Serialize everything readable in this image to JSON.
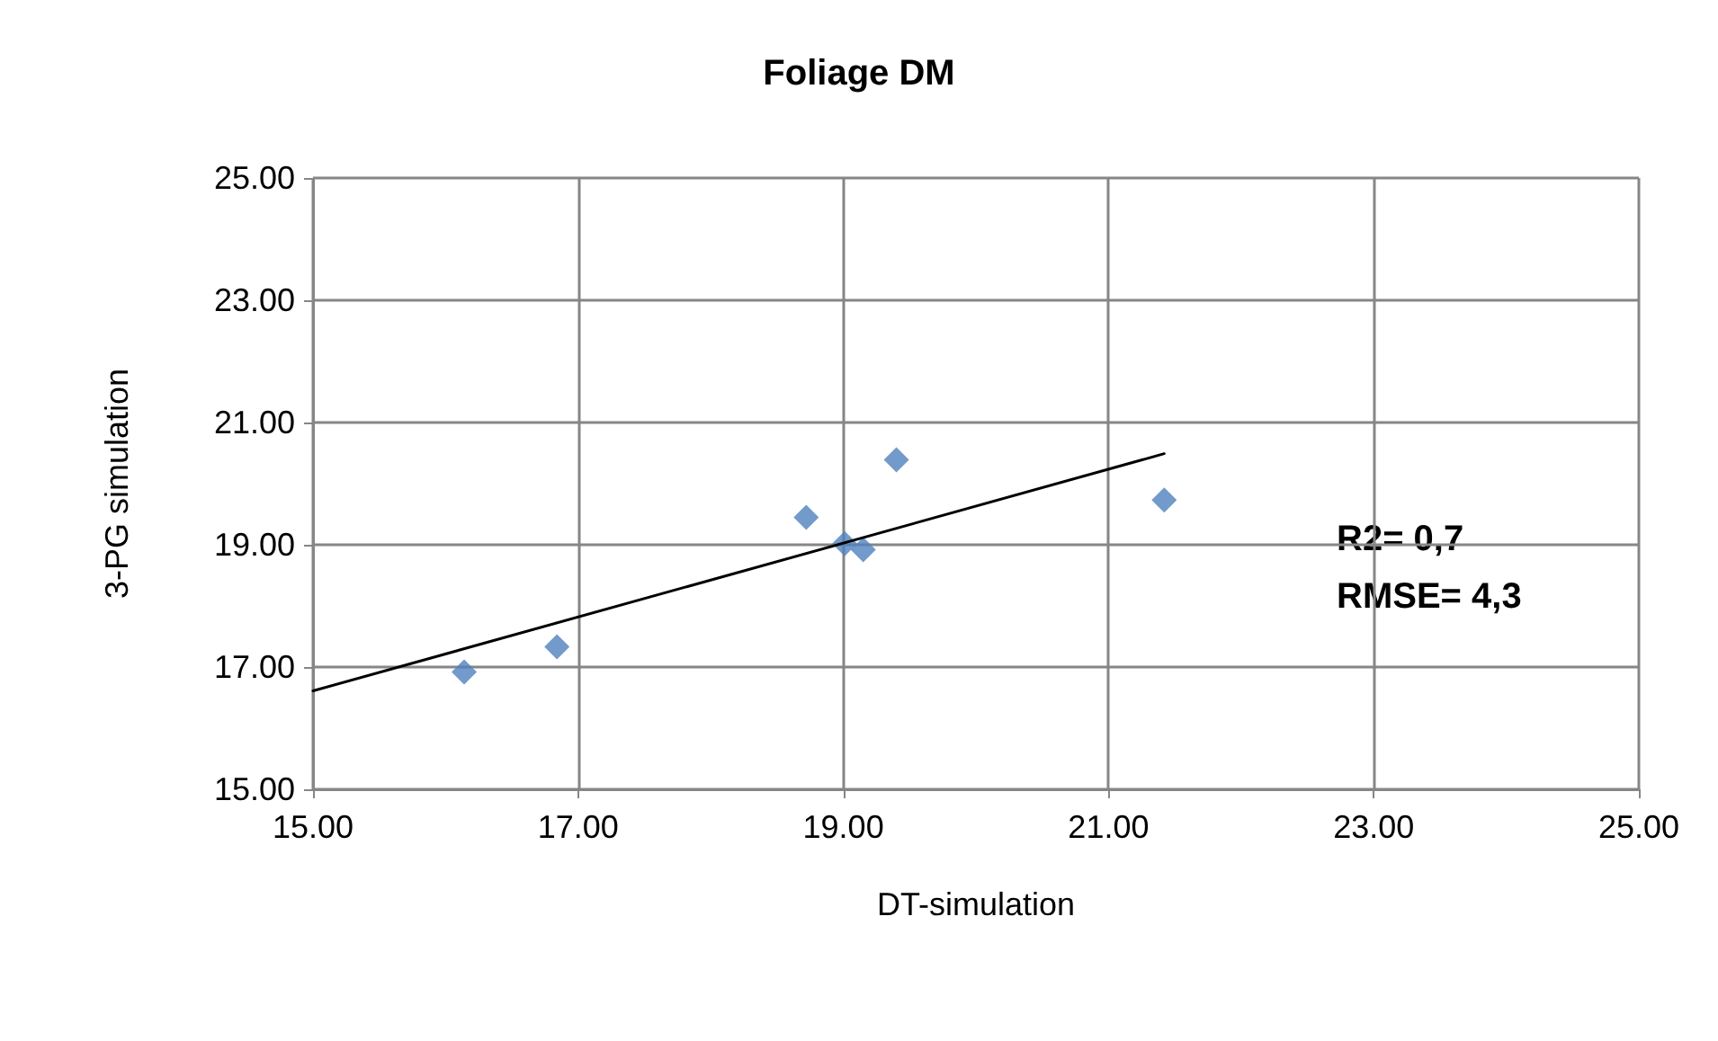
{
  "chart_data": {
    "type": "scatter",
    "title": "Foliage DM",
    "xlabel": "DT-simulation",
    "ylabel": "3-PG simulation",
    "series": [
      {
        "type": "scatter",
        "color": "#4f81bd",
        "marker": "diamond",
        "x": [
          16.14,
          16.84,
          18.72,
          19.01,
          19.15,
          19.4,
          21.42
        ],
        "values": [
          16.92,
          17.33,
          19.45,
          19.02,
          18.92,
          20.39,
          19.73
        ]
      },
      {
        "type": "line",
        "color": "#000000",
        "marker": "none",
        "line_style": "solid",
        "x": [
          15.0,
          21.42
        ],
        "values": [
          16.61,
          20.49
        ]
      }
    ],
    "annotations": [
      "R2= 0,7",
      "RMSE= 4,3"
    ],
    "xlim": [
      15,
      25
    ],
    "xticks": [
      {
        "value": 15,
        "label": "15.00"
      },
      {
        "value": 17,
        "label": "17.00"
      },
      {
        "value": 19,
        "label": "19.00"
      },
      {
        "value": 21,
        "label": "21.00"
      },
      {
        "value": 23,
        "label": "23.00"
      },
      {
        "value": 25,
        "label": "25.00"
      }
    ],
    "ylim": [
      15,
      25
    ],
    "yticks": [
      {
        "value": 15,
        "label": "15.00"
      },
      {
        "value": 17,
        "label": "17.00"
      },
      {
        "value": 19,
        "label": "19.00"
      },
      {
        "value": 21,
        "label": "21.00"
      },
      {
        "value": 23,
        "label": "23.00"
      },
      {
        "value": 25,
        "label": "25.00"
      }
    ],
    "grid": true
  }
}
